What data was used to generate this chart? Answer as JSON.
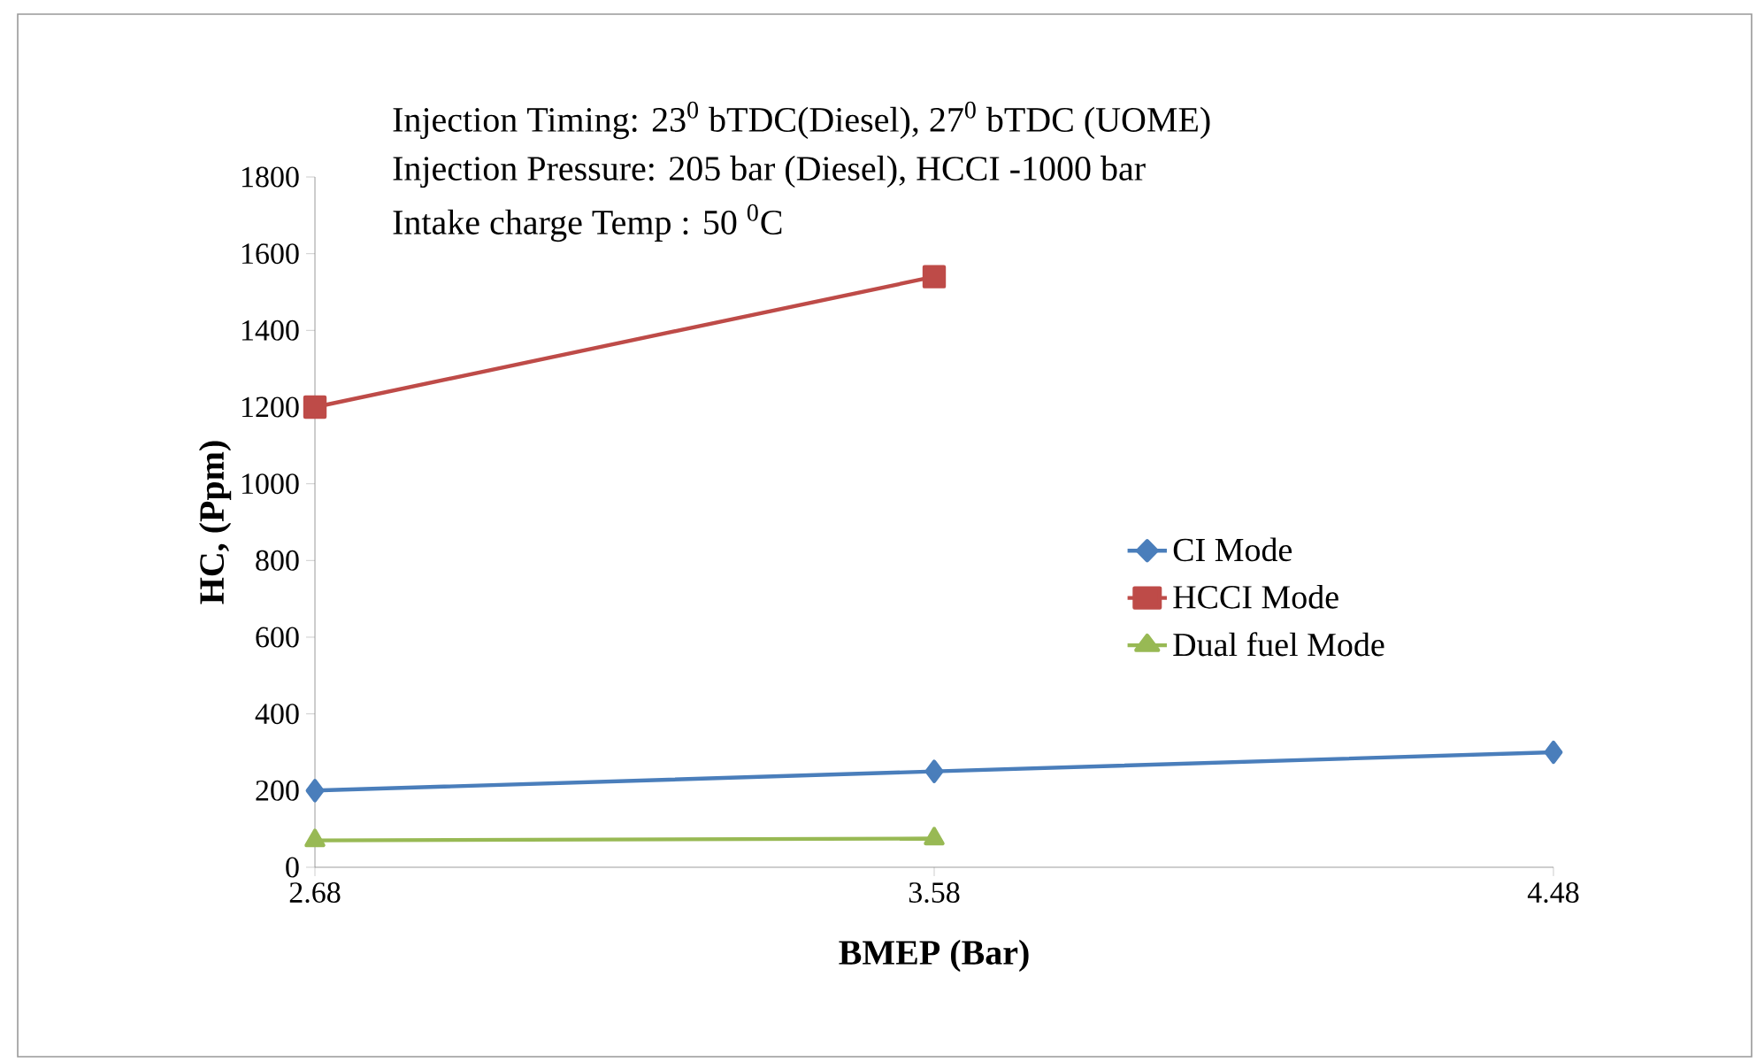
{
  "chart_data": {
    "type": "line",
    "annotations": [
      "Injection Timing: 23$^{0}$ bTDC(Diesel), 27$^{0}$ bTDC (UOME)",
      "Injection Pressure: 205 bar (Diesel), HCCI -1000 bar",
      "Intake charge Temp : 50 $^{0}$C"
    ],
    "xlabel": "BMEP (Bar)",
    "ylabel": "HC, (Ppm)",
    "x": [
      2.68,
      3.58,
      4.48
    ],
    "xlim": [
      2.68,
      4.48
    ],
    "xticks": [
      2.68,
      3.58,
      4.48
    ],
    "series": [
      {
        "name": "CI Mode",
        "color": "#4a7ebb",
        "marker": "diamond",
        "values": [
          200,
          250,
          300
        ]
      },
      {
        "name": "HCCI Mode",
        "color": "#be4b48",
        "marker": "square",
        "values": [
          1200,
          1540,
          null
        ]
      },
      {
        "name": "Dual fuel Mode",
        "color": "#98b954",
        "marker": "triangle",
        "values": [
          70,
          75,
          null
        ]
      }
    ],
    "ylim": [
      0,
      1800
    ],
    "yticks": [
      0,
      200,
      400,
      600,
      800,
      1000,
      1200,
      1400,
      1600,
      1800
    ],
    "grid": false,
    "legend": "right",
    "line_style": "solid"
  }
}
